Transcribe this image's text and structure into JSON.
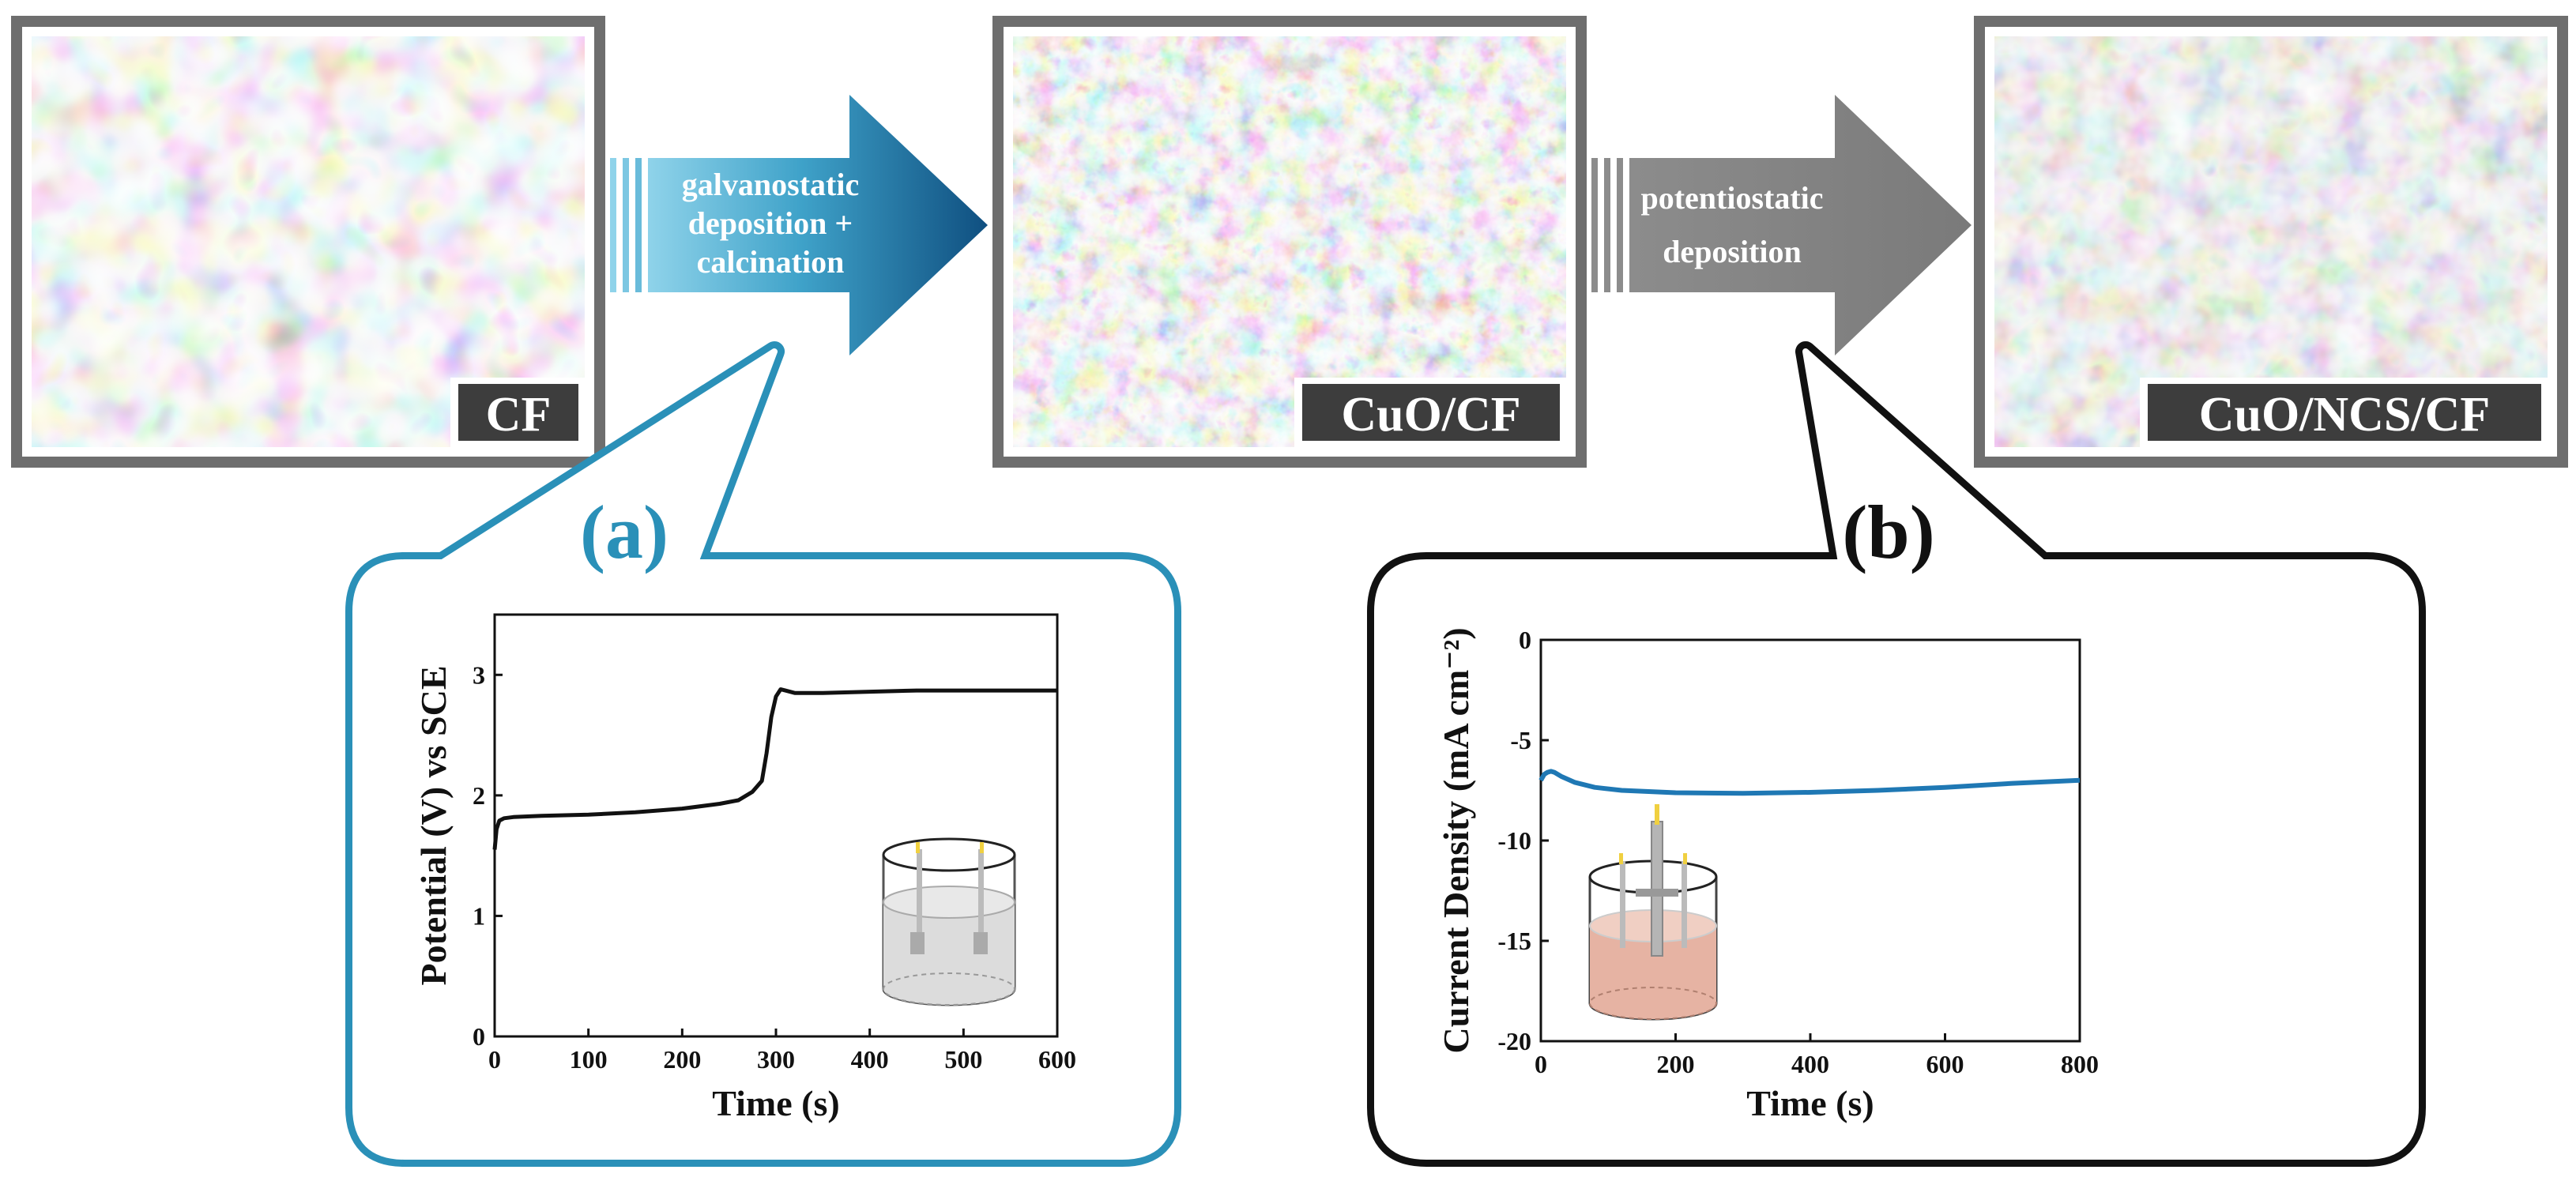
{
  "micrographs": [
    {
      "id": "cf",
      "label": "CF"
    },
    {
      "id": "cuo-cf",
      "label": "CuO/CF"
    },
    {
      "id": "cuo-ncs-cf",
      "label": "CuO/NCS/CF"
    }
  ],
  "arrows": [
    {
      "id": "galvanostatic",
      "lines": [
        "galvanostatic",
        "deposition +",
        "calcination"
      ],
      "color": "#1f78a8"
    },
    {
      "id": "potentiostatic",
      "lines": [
        "potentiostatic",
        "deposition"
      ],
      "color": "#7a7a7a"
    }
  ],
  "callouts": [
    {
      "id": "a",
      "label": "(a)",
      "color": "#2a90b8"
    },
    {
      "id": "b",
      "label": "(b)",
      "color": "#111111"
    }
  ],
  "chart_data": [
    {
      "id": "a",
      "type": "line",
      "xlabel": "Time (s)",
      "ylabel": "Potential (V) vs SCE",
      "xlim": [
        0,
        600
      ],
      "ylim": [
        0,
        3.5
      ],
      "xticks": [
        0,
        100,
        200,
        300,
        400,
        500,
        600
      ],
      "yticks": [
        0,
        1,
        2,
        3
      ],
      "line_color": "#111111",
      "series": [
        {
          "x": [
            0,
            2,
            5,
            10,
            20,
            50,
            100,
            150,
            200,
            240,
            260,
            275,
            285,
            290,
            295,
            300,
            305,
            310,
            320,
            350,
            400,
            450,
            500,
            550,
            600
          ],
          "y": [
            1.55,
            1.72,
            1.79,
            1.81,
            1.82,
            1.83,
            1.84,
            1.86,
            1.89,
            1.93,
            1.96,
            2.03,
            2.12,
            2.35,
            2.65,
            2.82,
            2.88,
            2.87,
            2.85,
            2.85,
            2.86,
            2.87,
            2.87,
            2.87,
            2.87
          ]
        }
      ]
    },
    {
      "id": "b",
      "type": "line",
      "xlabel": "Time (s)",
      "ylabel": "Current Density (mA cm⁻²)",
      "xlim": [
        0,
        800
      ],
      "ylim": [
        -20,
        0
      ],
      "xticks": [
        0,
        200,
        400,
        600,
        800
      ],
      "yticks": [
        0,
        -5,
        -10,
        -15,
        -20
      ],
      "line_color": "#1f78b4",
      "series": [
        {
          "x": [
            0,
            5,
            10,
            15,
            20,
            30,
            50,
            80,
            120,
            200,
            300,
            400,
            500,
            600,
            700,
            800
          ],
          "y": [
            -7.0,
            -6.7,
            -6.6,
            -6.55,
            -6.6,
            -6.8,
            -7.1,
            -7.35,
            -7.5,
            -7.62,
            -7.65,
            -7.6,
            -7.5,
            -7.35,
            -7.15,
            -7.0
          ]
        }
      ]
    }
  ]
}
